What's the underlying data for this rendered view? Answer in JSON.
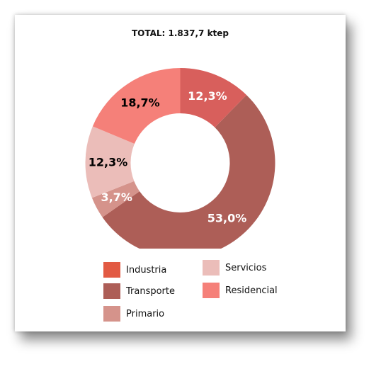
{
  "chart_data": {
    "type": "pie",
    "style": "donut",
    "title": "TOTAL: 1.837,7 ktep",
    "categories": [
      "Transporte",
      "Primario",
      "Servicios",
      "Residencial",
      "Industria"
    ],
    "values": [
      53.0,
      3.7,
      12.3,
      18.7,
      12.3
    ],
    "labels": [
      "53,0%",
      "3,7%",
      "12,3%",
      "18,7%",
      "12,3%"
    ],
    "colors": [
      "#ad5e57",
      "#d5938b",
      "#ebbdb9",
      "#f58079",
      "#d85f5c"
    ],
    "label_colors": [
      "#ffffff",
      "#ffffff",
      "#000000",
      "#000000",
      "#ffffff"
    ],
    "legend": {
      "position": "bottom",
      "items": [
        {
          "label": "Industria",
          "color": "#e25a43"
        },
        {
          "label": "Servicios",
          "color": "#ebbdb9"
        },
        {
          "label": "Transporte",
          "color": "#ad5e57"
        },
        {
          "label": "Residencial",
          "color": "#f58079"
        },
        {
          "label": "Primario",
          "color": "#d5938b"
        }
      ]
    }
  }
}
